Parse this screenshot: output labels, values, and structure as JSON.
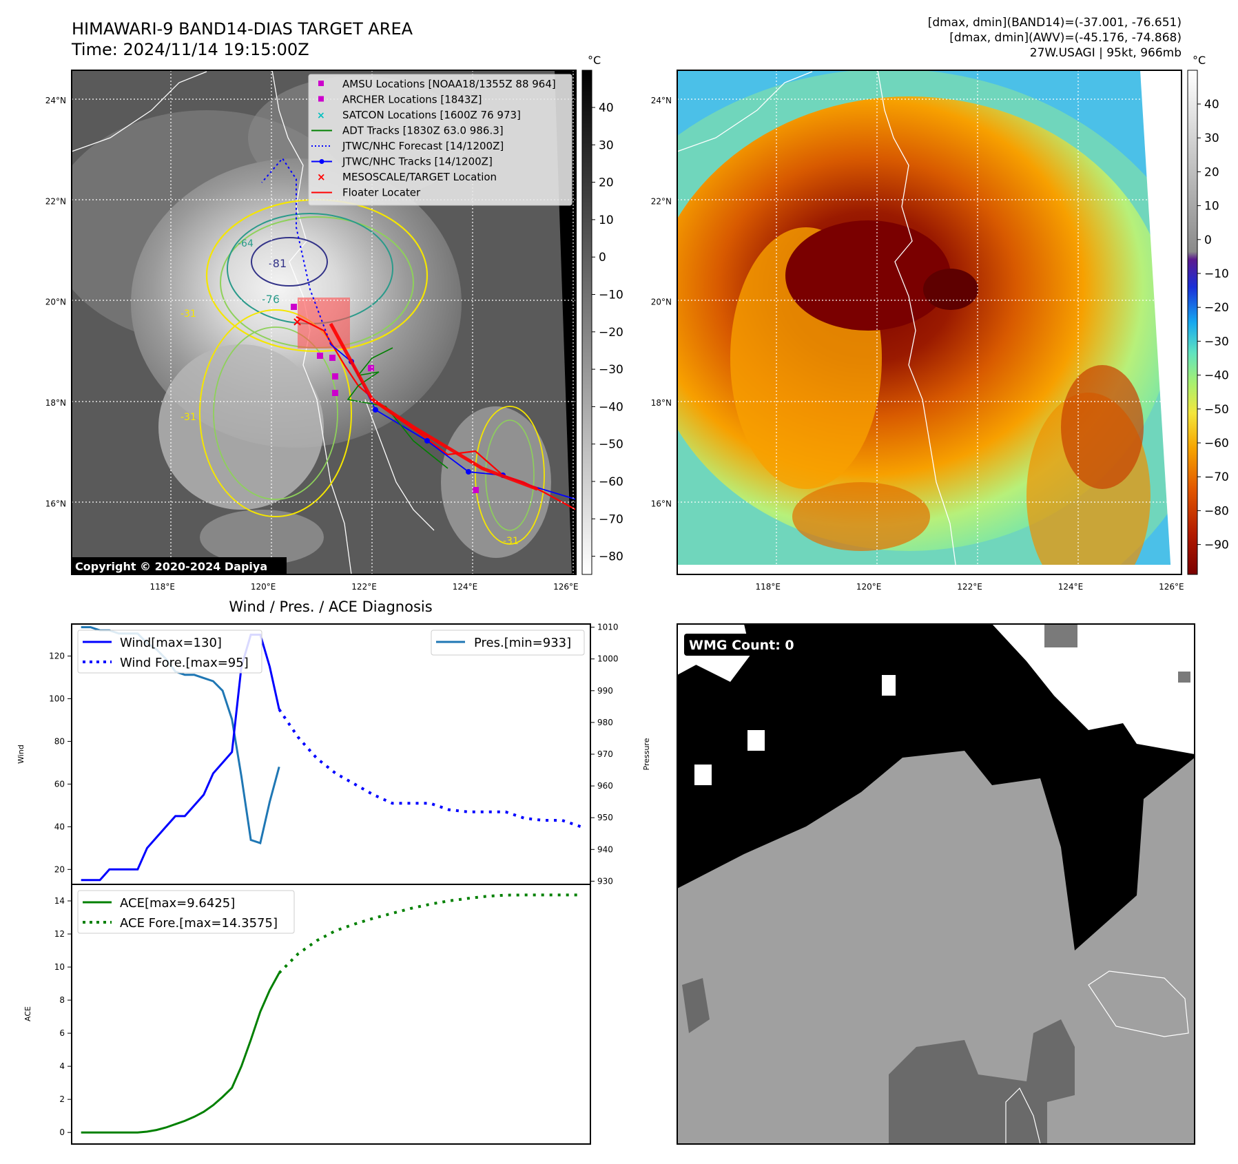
{
  "header": {
    "title": "HIMAWARI-9 BAND14-DIAS TARGET AREA",
    "time": "Time: 2024/11/14 19:15:00Z",
    "stats_band14": "[dmax, dmin](BAND14)=(-37.001, -76.651)",
    "stats_awv": "[dmax, dmin](AWV)=(-45.176, -74.868)",
    "storm": "27W.USAGI | 95kt, 966mb"
  },
  "map": {
    "lat_labels": [
      "24°N",
      "22°N",
      "20°N",
      "18°N",
      "16°N"
    ],
    "lon_labels": [
      "118°E",
      "120°E",
      "122°E",
      "124°E",
      "126°E"
    ],
    "lat_range": [
      14.6,
      24.6
    ],
    "lon_range": [
      116.2,
      126.2
    ],
    "copyright": "Copyright © 2020-2024 Dapiya",
    "contour_labels": [
      "-81",
      "-76",
      "-64",
      "-31",
      "-31",
      "-31"
    ],
    "legend": [
      {
        "label": "AMSU Locations [NOAA18/1355Z 88 964]",
        "color": "#cc00cc"
      },
      {
        "label": "ARCHER Locations [1843Z]",
        "color": "#cc00cc"
      },
      {
        "label": "SATCON Locations [1600Z 76 973]",
        "color": "#00c0c0"
      },
      {
        "label": "ADT Tracks [1830Z 63.0 986.3]",
        "color": "#008000"
      },
      {
        "label": "JTWC/NHC Forecast [14/1200Z]",
        "color": "#0000ff"
      },
      {
        "label": "JTWC/NHC Tracks [14/1200Z]",
        "color": "#0000ff"
      },
      {
        "label": "MESOSCALE/TARGET Location",
        "color": "#ff0000"
      },
      {
        "label": "Floater Locater",
        "color": "#ff0000"
      }
    ]
  },
  "colorbar_gray": {
    "unit": "°C",
    "ticks": [
      "40",
      "30",
      "20",
      "10",
      "0",
      "−10",
      "−20",
      "−30",
      "−40",
      "−50",
      "−60",
      "−70",
      "−80"
    ]
  },
  "colorbar_color": {
    "unit": "°C",
    "ticks": [
      "40",
      "30",
      "20",
      "10",
      "0",
      "−10",
      "−20",
      "−30",
      "−40",
      "−50",
      "−60",
      "−70",
      "−80",
      "−90"
    ]
  },
  "wmg": {
    "label": "WMG Count: 0"
  },
  "chart_data": [
    {
      "type": "line",
      "title": "Wind / Pres. / ACE Diagnosis",
      "ylabel": "Wind",
      "y2label": "Pressure",
      "ylim": [
        13,
        135
      ],
      "y2lim": [
        929,
        1011
      ],
      "yticks": [
        "20",
        "40",
        "60",
        "80",
        "100",
        "120"
      ],
      "y2ticks": [
        "930",
        "940",
        "950",
        "960",
        "970",
        "980",
        "990",
        "1000",
        "1010"
      ],
      "series": [
        {
          "name": "Wind[max=130]",
          "color": "#0000ff",
          "style": "solid",
          "x": [
            0,
            1,
            2,
            3,
            4,
            5,
            6,
            7,
            8,
            9,
            10,
            11,
            12,
            13,
            14,
            15,
            16,
            17,
            18,
            19,
            20,
            21
          ],
          "values": [
            15,
            15,
            15,
            20,
            20,
            20,
            20,
            30,
            35,
            40,
            45,
            45,
            50,
            55,
            65,
            70,
            75,
            115,
            130,
            130,
            115,
            95
          ]
        },
        {
          "name": "Wind Fore.[max=95]",
          "color": "#0000ff",
          "style": "dotted",
          "x": [
            21,
            23,
            25,
            27,
            29,
            31,
            33,
            35,
            37,
            39,
            41,
            43,
            45,
            47,
            49,
            51,
            53
          ],
          "values": [
            95,
            82,
            72,
            65,
            60,
            55,
            51,
            51,
            51,
            48,
            47,
            47,
            47,
            44,
            43,
            43,
            40
          ]
        },
        {
          "name": "Pres.[min=933]",
          "color": "#1f77b4",
          "style": "solid",
          "axis": "right",
          "x": [
            0,
            1,
            2,
            3,
            4,
            5,
            6,
            7,
            8,
            9,
            10,
            11,
            12,
            13,
            14,
            15,
            16,
            17,
            18,
            19,
            20,
            21
          ],
          "values": [
            1010,
            1010,
            1009,
            1009,
            1008,
            1008,
            1008,
            1005,
            1003,
            1000,
            996,
            995,
            995,
            994,
            993,
            990,
            981,
            963,
            943,
            942,
            955,
            966
          ]
        }
      ]
    },
    {
      "type": "line",
      "ylabel": "ACE",
      "ylim": [
        -0.7,
        15
      ],
      "yticks": [
        "0",
        "2",
        "4",
        "6",
        "8",
        "10",
        "12",
        "14"
      ],
      "series": [
        {
          "name": "ACE[max=9.6425]",
          "color": "#008000",
          "style": "solid",
          "x": [
            0,
            1,
            2,
            3,
            4,
            5,
            6,
            7,
            8,
            9,
            10,
            11,
            12,
            13,
            14,
            15,
            16,
            17,
            18,
            19,
            20,
            21
          ],
          "values": [
            0,
            0,
            0,
            0,
            0,
            0,
            0,
            0.05,
            0.15,
            0.3,
            0.5,
            0.7,
            0.95,
            1.25,
            1.65,
            2.15,
            2.7,
            4.0,
            5.6,
            7.3,
            8.6,
            9.6425
          ]
        },
        {
          "name": "ACE Fore.[max=14.3575]",
          "color": "#008000",
          "style": "dotted",
          "x": [
            21,
            23,
            25,
            27,
            29,
            31,
            33,
            35,
            37,
            39,
            41,
            43,
            45,
            47,
            49,
            51,
            53
          ],
          "values": [
            9.6425,
            10.8,
            11.6,
            12.2,
            12.6,
            12.95,
            13.25,
            13.55,
            13.8,
            14.0,
            14.15,
            14.28,
            14.35,
            14.3575,
            14.3575,
            14.3575,
            14.3575
          ]
        }
      ]
    }
  ]
}
